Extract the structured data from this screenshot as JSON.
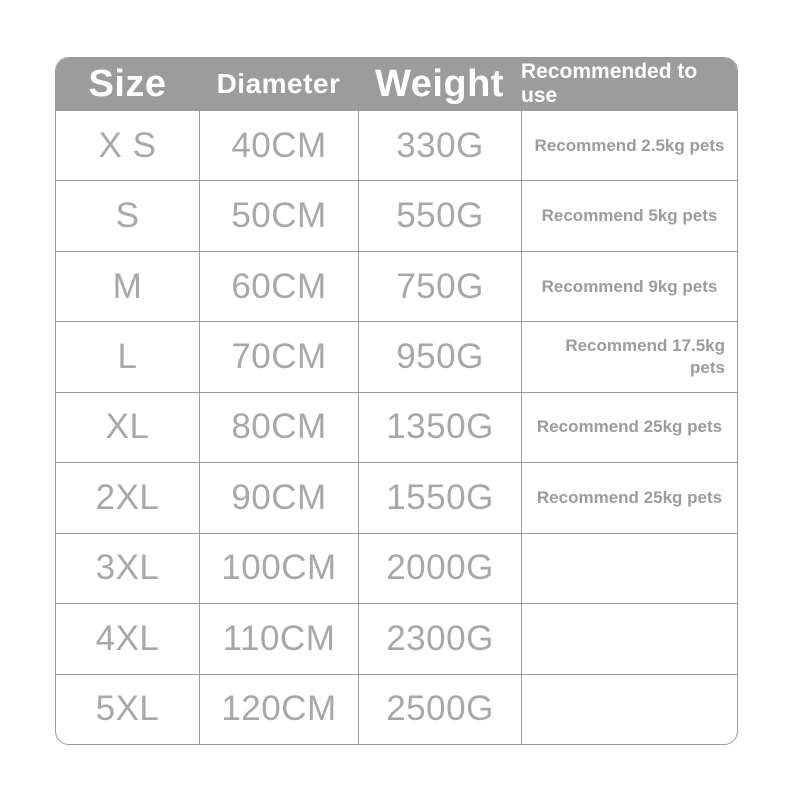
{
  "colors": {
    "header_bg": "#9c9c9c",
    "header_text": "#ffffff",
    "border": "#9b9b9b",
    "cell_text": "#a8a8a8",
    "recommend_text": "#9c9c9c"
  },
  "table": {
    "headers": [
      "Size",
      "Diameter",
      "Weight",
      "Recommended to use"
    ],
    "rows": [
      [
        "X S",
        "40CM",
        "330G",
        "Recommend 2.5kg pets"
      ],
      [
        "S",
        "50CM",
        "550G",
        "Recommend 5kg pets"
      ],
      [
        "M",
        "60CM",
        "750G",
        "Recommend 9kg pets"
      ],
      [
        "L",
        "70CM",
        "950G",
        "Recommend 17.5kg pets"
      ],
      [
        "XL",
        "80CM",
        "1350G",
        "Recommend 25kg pets"
      ],
      [
        "2XL",
        "90CM",
        "1550G",
        "Recommend 25kg pets"
      ],
      [
        "3XL",
        "100CM",
        "2000G",
        ""
      ],
      [
        "4XL",
        "110CM",
        "2300G",
        ""
      ],
      [
        "5XL",
        "120CM",
        "2500G",
        ""
      ]
    ]
  },
  "chart_data": {
    "type": "table",
    "title": "",
    "columns": [
      "Size",
      "Diameter",
      "Weight",
      "Recommended to use"
    ],
    "rows": [
      [
        "X S",
        "40CM",
        "330G",
        "Recommend 2.5kg pets"
      ],
      [
        "S",
        "50CM",
        "550G",
        "Recommend 5kg pets"
      ],
      [
        "M",
        "60CM",
        "750G",
        "Recommend 9kg pets"
      ],
      [
        "L",
        "70CM",
        "950G",
        "Recommend 17.5kg pets"
      ],
      [
        "XL",
        "80CM",
        "1350G",
        "Recommend 25kg pets"
      ],
      [
        "2XL",
        "90CM",
        "1550G",
        "Recommend 25kg pets"
      ],
      [
        "3XL",
        "100CM",
        "2000G",
        ""
      ],
      [
        "4XL",
        "110CM",
        "2300G",
        ""
      ],
      [
        "5XL",
        "120CM",
        "2500G",
        ""
      ]
    ],
    "layout_hints": {
      "header_style": "gray bar, white bold text, rounded top corners",
      "grid": "1px gray lines, no vertical separators in header",
      "alignment": "all cells centered except L-row recommendation which is right-aligned and wraps to two lines"
    }
  }
}
